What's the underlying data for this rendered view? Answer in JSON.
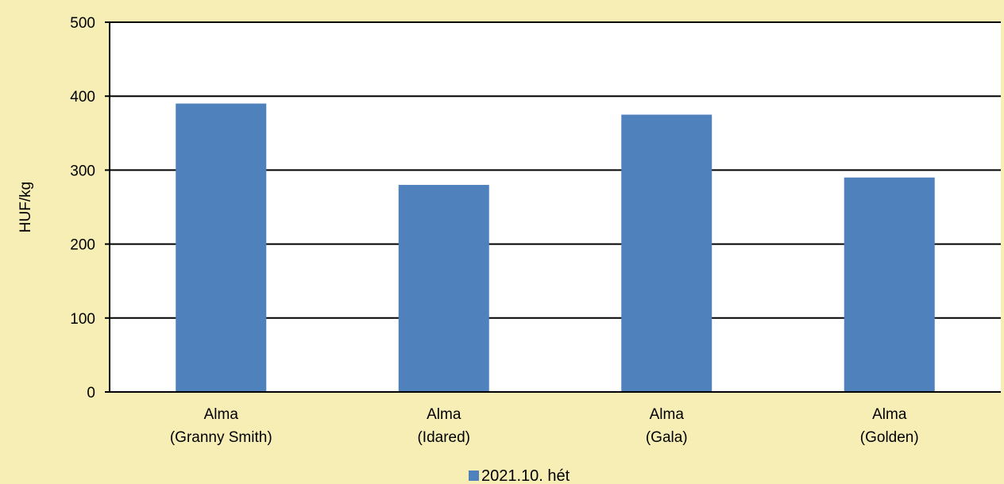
{
  "chart_data": {
    "type": "bar",
    "categories": [
      [
        "Alma",
        "(Granny Smith)"
      ],
      [
        "Alma",
        "(Idared)"
      ],
      [
        "Alma",
        "(Gala)"
      ],
      [
        "Alma",
        "(Golden)"
      ]
    ],
    "series": [
      {
        "name": "2021.10. hét",
        "values": [
          390,
          280,
          375,
          290
        ],
        "color": "#4f81bd"
      }
    ],
    "ylabel": "HUF/kg",
    "xlabel": "",
    "ylim": [
      0,
      500
    ],
    "yticks": [
      0,
      100,
      200,
      300,
      400,
      500
    ],
    "grid": true,
    "legend": "bottom-center",
    "background": "#f7eeb5",
    "plot_background": "#ffffff"
  }
}
